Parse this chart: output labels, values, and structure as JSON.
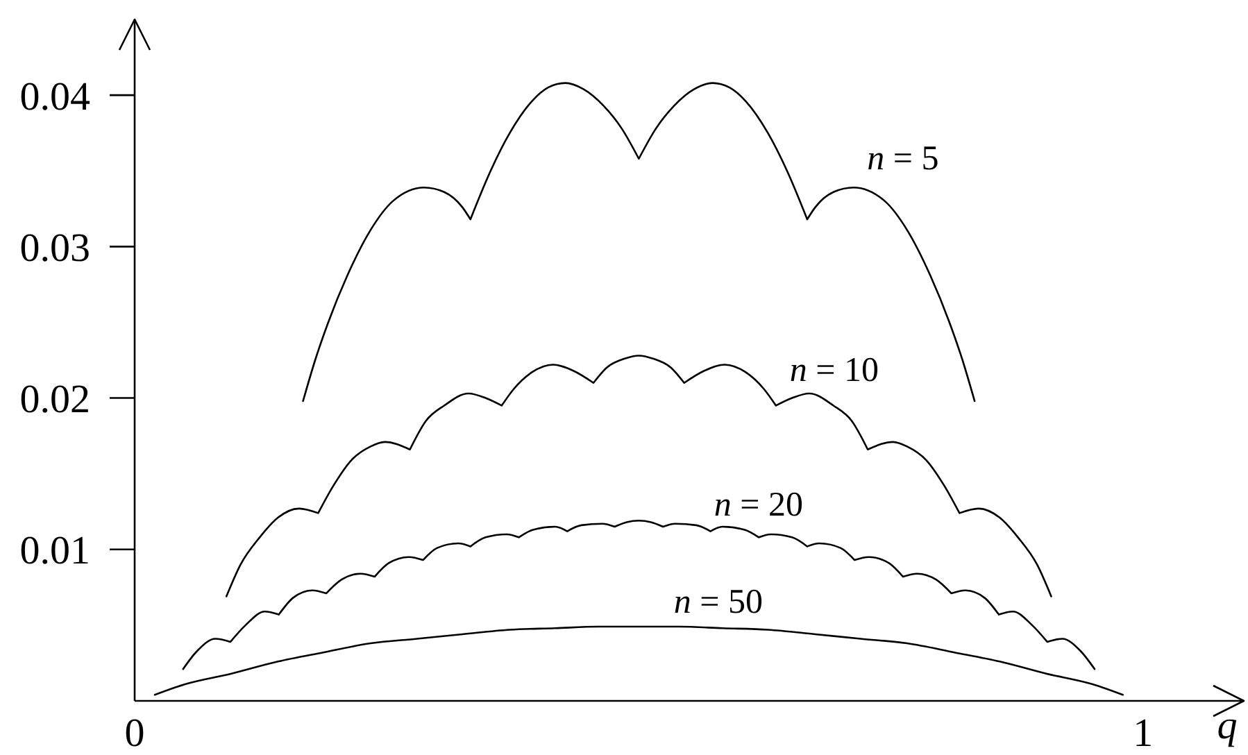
{
  "chart_data": {
    "type": "line",
    "xlabel": "q",
    "xlim": [
      0,
      1.1
    ],
    "xticks": [
      0,
      1
    ],
    "ylim": [
      0,
      0.045
    ],
    "yticks": [
      0.01,
      0.02,
      0.03,
      0.04
    ],
    "series": [
      {
        "name": "n = 5",
        "color": "#000000",
        "x": [
          0.167,
          0.179,
          0.192,
          0.211,
          0.234,
          0.256,
          0.287,
          0.307,
          0.325,
          0.333,
          0.353,
          0.372,
          0.394,
          0.41,
          0.427,
          0.445,
          0.465,
          0.483,
          0.5,
          0.517,
          0.535,
          0.555,
          0.573,
          0.59,
          0.606,
          0.628,
          0.647,
          0.667,
          0.675,
          0.693,
          0.713,
          0.744,
          0.766,
          0.789,
          0.808,
          0.821,
          0.833
        ],
        "values": [
          0.0198,
          0.0225,
          0.025,
          0.0281,
          0.0311,
          0.033,
          0.0339,
          0.0336,
          0.0326,
          0.0318,
          0.035,
          0.0375,
          0.0396,
          0.0405,
          0.0408,
          0.0404,
          0.0393,
          0.0378,
          0.0358,
          0.0378,
          0.0393,
          0.0404,
          0.0408,
          0.0405,
          0.0396,
          0.0375,
          0.035,
          0.0318,
          0.0326,
          0.0336,
          0.0339,
          0.033,
          0.0311,
          0.0281,
          0.025,
          0.0225,
          0.0198
        ]
      },
      {
        "name": "n = 10",
        "color": "#000000",
        "x": [
          0.091,
          0.105,
          0.124,
          0.142,
          0.163,
          0.182,
          0.197,
          0.215,
          0.234,
          0.248,
          0.273,
          0.289,
          0.307,
          0.331,
          0.348,
          0.364,
          0.376,
          0.394,
          0.415,
          0.435,
          0.455,
          0.468,
          0.486,
          0.5,
          0.514,
          0.532,
          0.545,
          0.565,
          0.585,
          0.606,
          0.624,
          0.636,
          0.652,
          0.669,
          0.693,
          0.711,
          0.727,
          0.752,
          0.766,
          0.785,
          0.803,
          0.818,
          0.837,
          0.858,
          0.876,
          0.895,
          0.909
        ],
        "values": [
          0.0069,
          0.009,
          0.0108,
          0.0121,
          0.0127,
          0.0124,
          0.0142,
          0.0159,
          0.0168,
          0.0171,
          0.0166,
          0.0185,
          0.0195,
          0.0203,
          0.02,
          0.0195,
          0.0206,
          0.0217,
          0.0222,
          0.0218,
          0.021,
          0.022,
          0.0226,
          0.0228,
          0.0226,
          0.022,
          0.021,
          0.0218,
          0.0222,
          0.0217,
          0.0206,
          0.0195,
          0.02,
          0.0203,
          0.0195,
          0.0185,
          0.0166,
          0.0171,
          0.0168,
          0.0159,
          0.0142,
          0.0124,
          0.0127,
          0.0121,
          0.0108,
          0.009,
          0.0069
        ]
      },
      {
        "name": "n = 20",
        "color": "#000000",
        "x": [
          0.048,
          0.062,
          0.08,
          0.095,
          0.11,
          0.129,
          0.143,
          0.157,
          0.176,
          0.19,
          0.205,
          0.224,
          0.238,
          0.252,
          0.272,
          0.286,
          0.3,
          0.321,
          0.333,
          0.348,
          0.369,
          0.381,
          0.395,
          0.417,
          0.429,
          0.443,
          0.464,
          0.476,
          0.488,
          0.5,
          0.512,
          0.524,
          0.536,
          0.557,
          0.571,
          0.583,
          0.605,
          0.619,
          0.631,
          0.652,
          0.667,
          0.679,
          0.7,
          0.714,
          0.728,
          0.748,
          0.762,
          0.776,
          0.795,
          0.81,
          0.824,
          0.843,
          0.857,
          0.871,
          0.89,
          0.905,
          0.92,
          0.938,
          0.952
        ],
        "values": [
          0.0021,
          0.0033,
          0.0041,
          0.0039,
          0.005,
          0.0059,
          0.0057,
          0.0068,
          0.0073,
          0.0071,
          0.008,
          0.0084,
          0.0082,
          0.0091,
          0.0095,
          0.0093,
          0.0101,
          0.0104,
          0.0102,
          0.0108,
          0.011,
          0.0108,
          0.0113,
          0.0115,
          0.0112,
          0.0116,
          0.0117,
          0.0115,
          0.0118,
          0.0119,
          0.0118,
          0.0115,
          0.0117,
          0.0116,
          0.0112,
          0.0115,
          0.0113,
          0.0108,
          0.011,
          0.0108,
          0.0102,
          0.0104,
          0.0101,
          0.0093,
          0.0095,
          0.0091,
          0.0082,
          0.0084,
          0.008,
          0.0071,
          0.0073,
          0.0068,
          0.0057,
          0.0059,
          0.005,
          0.0039,
          0.0041,
          0.0033,
          0.0021
        ]
      },
      {
        "name": "n = 50",
        "color": "#000000",
        "x": [
          0.02,
          0.05,
          0.096,
          0.142,
          0.187,
          0.234,
          0.28,
          0.325,
          0.372,
          0.417,
          0.46,
          0.5,
          0.54,
          0.583,
          0.628,
          0.675,
          0.72,
          0.766,
          0.813,
          0.858,
          0.904,
          0.95,
          0.98
        ],
        "values": [
          0.0004,
          0.0011,
          0.0018,
          0.0026,
          0.0032,
          0.0038,
          0.0041,
          0.0044,
          0.0047,
          0.0048,
          0.0049,
          0.0049,
          0.0049,
          0.0048,
          0.0047,
          0.0044,
          0.0041,
          0.0038,
          0.0032,
          0.0026,
          0.0018,
          0.0011,
          0.0004
        ]
      }
    ]
  }
}
